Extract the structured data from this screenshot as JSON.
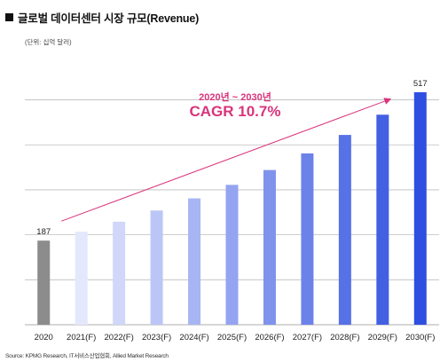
{
  "header": {
    "title": "글로벌 데이터센터 시장 규모(Revenue)",
    "unit_note": "(단위: 십억 달러)"
  },
  "annotation": {
    "period": "2020년 ~ 2030년",
    "cagr": "CAGR 10.7%"
  },
  "footer": {
    "source": "Source: KPMG Research, IT서비스산업협회, Allied Market Research"
  },
  "colors": {
    "first_bar": "#8c8c8c",
    "bar_light": "#e4e8fc",
    "bar_dark": "#2f4fe0",
    "trend_arrow": "#d9347c",
    "gridline": "#bdbdbd"
  },
  "chart_data": {
    "type": "bar",
    "title": "글로벌 데이터센터 시장 규모(Revenue)",
    "xlabel": "",
    "ylabel": "",
    "categories": [
      "2020",
      "2021(F)",
      "2022(F)",
      "2023(F)",
      "2024(F)",
      "2025(F)",
      "2026(F)",
      "2027(F)",
      "2028(F)",
      "2029(F)",
      "2030(F)"
    ],
    "values": [
      187,
      207,
      229,
      254,
      281,
      311,
      344,
      381,
      422,
      467,
      517
    ],
    "data_labels": [
      {
        "index": 0,
        "text": "187"
      },
      {
        "index": 10,
        "text": "517"
      }
    ],
    "ylim": [
      0,
      580
    ],
    "grid": true,
    "legend": "none"
  }
}
